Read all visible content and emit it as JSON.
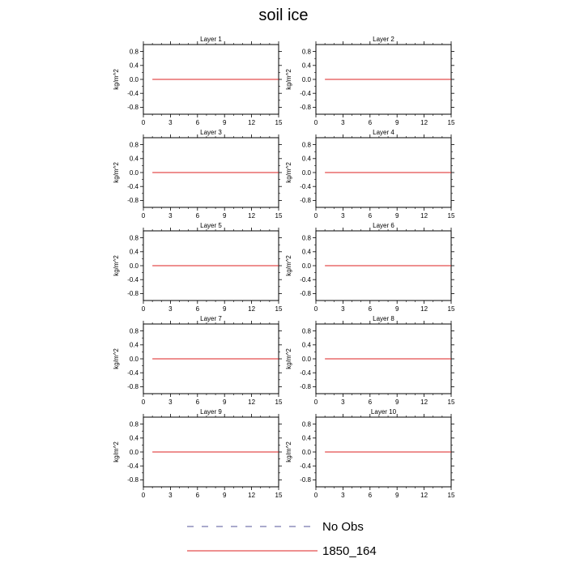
{
  "title": "soil ice",
  "chart_data": {
    "type": "line",
    "title": "soil ice",
    "layout": "5 rows x 2 columns of panels",
    "x_ticks": [
      0,
      3,
      6,
      9,
      12,
      15
    ],
    "xlim": [
      0,
      15
    ],
    "y_ticks": [
      "0.8",
      "0.4",
      "0.0",
      "-0.4",
      "-0.8"
    ],
    "y_tick_values": [
      0.8,
      0.4,
      0.0,
      -0.4,
      -0.8
    ],
    "ylim": [
      -1,
      1
    ],
    "ylabel": "kg/m^2",
    "panels": [
      {
        "title": "Layer 1",
        "series": [
          {
            "name": "1850_164",
            "x": [
              1,
              15
            ],
            "y": [
              0,
              0
            ]
          }
        ]
      },
      {
        "title": "Layer 2",
        "series": [
          {
            "name": "1850_164",
            "x": [
              1,
              15
            ],
            "y": [
              0,
              0
            ]
          }
        ]
      },
      {
        "title": "Layer 3",
        "series": [
          {
            "name": "1850_164",
            "x": [
              1,
              15
            ],
            "y": [
              0,
              0
            ]
          }
        ]
      },
      {
        "title": "Layer 4",
        "series": [
          {
            "name": "1850_164",
            "x": [
              1,
              15
            ],
            "y": [
              0,
              0
            ]
          }
        ]
      },
      {
        "title": "Layer 5",
        "series": [
          {
            "name": "1850_164",
            "x": [
              1,
              15
            ],
            "y": [
              0,
              0
            ]
          }
        ]
      },
      {
        "title": "Layer 6",
        "series": [
          {
            "name": "1850_164",
            "x": [
              1,
              15
            ],
            "y": [
              0,
              0
            ]
          }
        ]
      },
      {
        "title": "Layer 7",
        "series": [
          {
            "name": "1850_164",
            "x": [
              1,
              15
            ],
            "y": [
              0,
              0
            ]
          }
        ]
      },
      {
        "title": "Layer 8",
        "series": [
          {
            "name": "1850_164",
            "x": [
              1,
              15
            ],
            "y": [
              0,
              0
            ]
          }
        ]
      },
      {
        "title": "Layer 9",
        "series": [
          {
            "name": "1850_164",
            "x": [
              1,
              15
            ],
            "y": [
              0,
              0
            ]
          }
        ]
      },
      {
        "title": "Layer 10",
        "series": [
          {
            "name": "1850_164",
            "x": [
              1,
              15
            ],
            "y": [
              0,
              0
            ]
          }
        ]
      }
    ],
    "legend": [
      {
        "label": "No Obs",
        "style": "dashed",
        "color": "#555599"
      },
      {
        "label": "1850_164",
        "style": "solid",
        "color": "#dd2222"
      }
    ],
    "legend_position": "bottom-center",
    "grid": false
  }
}
